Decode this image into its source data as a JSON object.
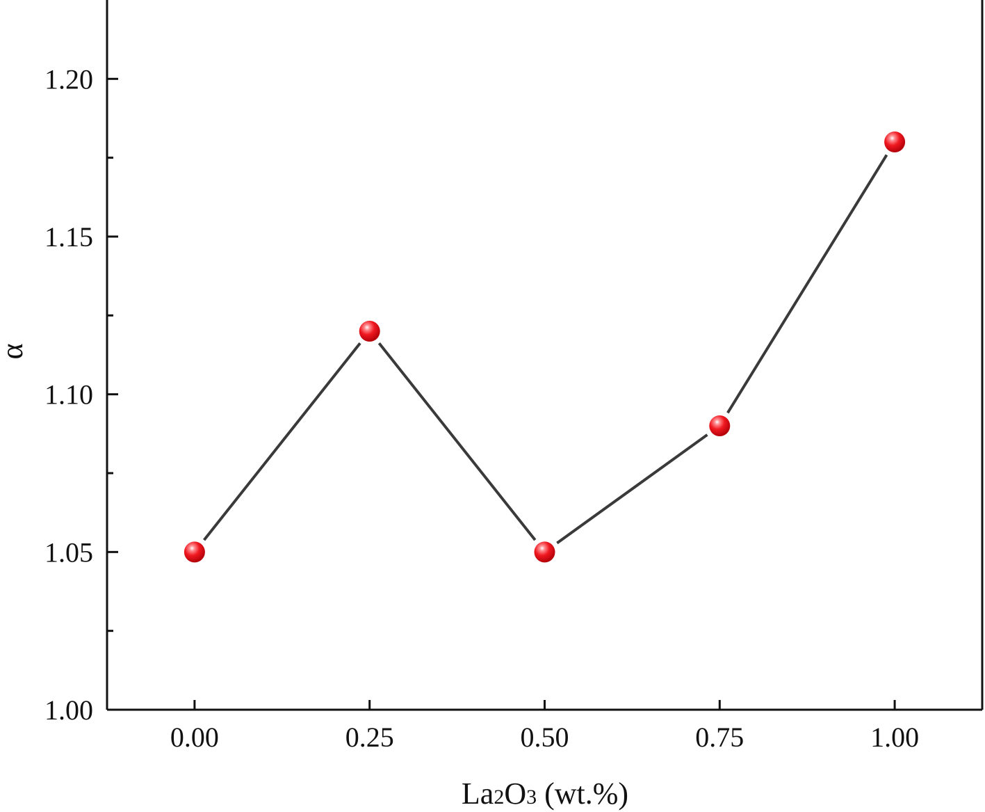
{
  "chart_data": {
    "type": "line",
    "title": "",
    "xlabel": {
      "base": "La",
      "sub1": "2",
      "mid": "O",
      "sub2": "3",
      "rest": " (wt.%)"
    },
    "ylabel": "α",
    "xlim": [
      -0.125,
      1.125
    ],
    "ylim": [
      1.0,
      1.225
    ],
    "x_ticks": [
      "0.00",
      "0.25",
      "0.50",
      "0.75",
      "1.00"
    ],
    "x_tick_values": [
      0,
      0.25,
      0.5,
      0.75,
      1.0
    ],
    "y_ticks": [
      "1.00",
      "1.05",
      "1.10",
      "1.15",
      "1.20"
    ],
    "y_tick_values": [
      1.0,
      1.05,
      1.1,
      1.15,
      1.2
    ],
    "y_minor_tick_values": [
      1.025,
      1.075,
      1.125,
      1.175
    ],
    "grid": false,
    "legend": "none",
    "series": [
      {
        "x": [
          0,
          0.25,
          0.5,
          0.75,
          1.0
        ],
        "y": [
          1.05,
          1.12,
          1.05,
          1.09,
          1.18
        ],
        "line_color": "#3a3a3a",
        "marker_color": "#e8101a",
        "marker": "sphere"
      }
    ]
  }
}
